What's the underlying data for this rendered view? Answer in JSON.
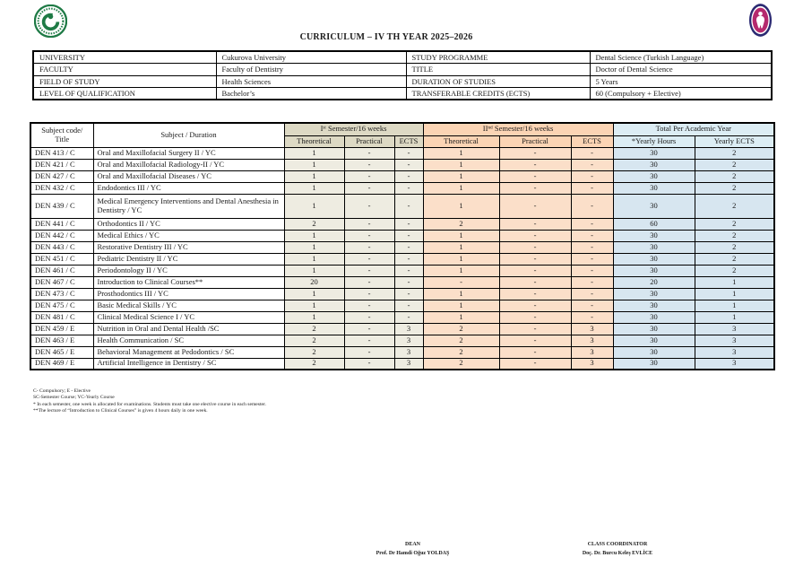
{
  "page": {
    "title": "CURRICULUM – IV TH YEAR 2025–2026"
  },
  "logos": {
    "left": "cukurova-university-seal",
    "right": "faculty-of-dentistry-seal",
    "left_color": "#1e7a45",
    "right_outer_color": "#2b2a72",
    "right_inner_color": "#b52a6e"
  },
  "info_table": {
    "rows": [
      {
        "label_left": "UNIVERSITY",
        "value_left": "Cukurova University",
        "label_right": "STUDY PROGRAMME",
        "value_right": "Dental Science (Turkish Language)"
      },
      {
        "label_left": "FACULTY",
        "value_left": "Faculty of Dentistry",
        "label_right": "TITLE",
        "value_right": "Doctor of Dental Science"
      },
      {
        "label_left": "FIELD OF STUDY",
        "value_left": "Health Sciences",
        "label_right": "DURATION OF STUDIES",
        "value_right": "5 Years"
      },
      {
        "label_left": "LEVEL OF QUALIFICATION",
        "value_left": "Bachelor’s",
        "label_right": "TRANSFERABLE CREDITS (ECTS)",
        "value_right": "60 (Compulsory + Elective)"
      }
    ]
  },
  "curriculum": {
    "headers": {
      "subject_code_line1": "Subject code/",
      "subject_code_line2": "Title",
      "subject": "Subject / Duration",
      "sem1": "Iˢᵗ Semester/16 weeks",
      "sem2": "IIⁿᵈ Semester/16 weeks",
      "total": "Total Per Academic Year",
      "theoretical": "Theoretical",
      "practical": "Practical",
      "ects": "ECTS",
      "yearly_hours": "*Yearly Hours",
      "yearly_ects": "Yearly ECTS"
    },
    "rows": [
      {
        "code": "DEN 413 / C",
        "subject": "Oral and Maxillofacial Surgery II / YC",
        "s1t": "1",
        "s1p": "-",
        "s1e": "-",
        "s2t": "1",
        "s2p": "-",
        "s2e": "-",
        "hours": "30",
        "ects": "2"
      },
      {
        "code": "DEN 421 / C",
        "subject": "Oral and Maxillofacial Radiology-II / YC",
        "s1t": "1",
        "s1p": "-",
        "s1e": "-",
        "s2t": "1",
        "s2p": "-",
        "s2e": "-",
        "hours": "30",
        "ects": "2"
      },
      {
        "code": "DEN 427 / C",
        "subject": "Oral and Maxillofacial Diseases / YC",
        "s1t": "1",
        "s1p": "-",
        "s1e": "-",
        "s2t": "1",
        "s2p": "-",
        "s2e": "-",
        "hours": "30",
        "ects": "2"
      },
      {
        "code": "DEN 432 / C",
        "subject": "Endodontics III / YC",
        "s1t": "1",
        "s1p": "-",
        "s1e": "-",
        "s2t": "1",
        "s2p": "-",
        "s2e": "-",
        "hours": "30",
        "ects": "2"
      },
      {
        "code": "DEN 439 / C",
        "subject": "Medical Emergency Interventions and Dental Anesthesia in Dentistry / YC",
        "s1t": "1",
        "s1p": "-",
        "s1e": "-",
        "s2t": "1",
        "s2p": "-",
        "s2e": "-",
        "hours": "30",
        "ects": "2"
      },
      {
        "code": "DEN 441 / C",
        "subject": "Orthodontics II / YC",
        "s1t": "2",
        "s1p": "-",
        "s1e": "-",
        "s2t": "2",
        "s2p": "-",
        "s2e": "-",
        "hours": "60",
        "ects": "2"
      },
      {
        "code": "DEN 442 / C",
        "subject": "Medical Ethics / YC",
        "s1t": "1",
        "s1p": "-",
        "s1e": "-",
        "s2t": "1",
        "s2p": "-",
        "s2e": "-",
        "hours": "30",
        "ects": "2"
      },
      {
        "code": "DEN 443 / C",
        "subject": "Restorative Dentistry III / YC",
        "s1t": "1",
        "s1p": "-",
        "s1e": "-",
        "s2t": "1",
        "s2p": "-",
        "s2e": "-",
        "hours": "30",
        "ects": "2"
      },
      {
        "code": "DEN 451 / C",
        "subject": "Pediatric Dentistry II / YC",
        "s1t": "1",
        "s1p": "-",
        "s1e": "-",
        "s2t": "1",
        "s2p": "-",
        "s2e": "-",
        "hours": "30",
        "ects": "2"
      },
      {
        "code": "DEN 461 / C",
        "subject": "Periodontology II / YC",
        "s1t": "1",
        "s1p": "-",
        "s1e": "-",
        "s2t": "1",
        "s2p": "-",
        "s2e": "-",
        "hours": "30",
        "ects": "2"
      },
      {
        "code": "DEN 467 / C",
        "subject": "Introduction to Clinical Courses**",
        "s1t": "20",
        "s1p": "-",
        "s1e": "-",
        "s2t": "-",
        "s2p": "-",
        "s2e": "-",
        "hours": "20",
        "ects": "1"
      },
      {
        "code": "DEN 473 / C",
        "subject": "Prosthodontics III / YC",
        "s1t": "1",
        "s1p": "-",
        "s1e": "-",
        "s2t": "1",
        "s2p": "-",
        "s2e": "-",
        "hours": "30",
        "ects": "1"
      },
      {
        "code": "DEN 475 / C",
        "subject": "Basic Medical Skills / YC",
        "s1t": "1",
        "s1p": "-",
        "s1e": "-",
        "s2t": "1",
        "s2p": "-",
        "s2e": "-",
        "hours": "30",
        "ects": "1"
      },
      {
        "code": "DEN 481 / C",
        "subject": "Clinical Medical Science I / YC",
        "s1t": "1",
        "s1p": "-",
        "s1e": "-",
        "s2t": "1",
        "s2p": "-",
        "s2e": "-",
        "hours": "30",
        "ects": "1"
      },
      {
        "code": "DEN 459 / E",
        "subject": "Nutrition in Oral and Dental Health /SC",
        "s1t": "2",
        "s1p": "-",
        "s1e": "3",
        "s2t": "2",
        "s2p": "-",
        "s2e": "3",
        "hours": "30",
        "ects": "3"
      },
      {
        "code": "DEN 463 / E",
        "subject": "Health Communication / SC",
        "s1t": "2",
        "s1p": "-",
        "s1e": "3",
        "s2t": "2",
        "s2p": "-",
        "s2e": "3",
        "hours": "30",
        "ects": "3"
      },
      {
        "code": "DEN 465 / E",
        "subject": "Behavioral Management at Pedodontics / SC",
        "s1t": "2",
        "s1p": "-",
        "s1e": "3",
        "s2t": "2",
        "s2p": "-",
        "s2e": "3",
        "hours": "30",
        "ects": "3"
      },
      {
        "code": "DEN 469 / E",
        "subject": "Artificial Intelligence in Dentistry / SC",
        "s1t": "2",
        "s1p": "-",
        "s1e": "3",
        "s2t": "2",
        "s2p": "-",
        "s2e": "3",
        "hours": "30",
        "ects": "3"
      }
    ]
  },
  "footnotes": [
    "C- Compulsory; E - Elective",
    "SC-Semester Course; YC-Yearly Course",
    "* In each semester, one week is allocated for examinations. Students must take one elective course in each semester.",
    "**The lecture of “Introduction to Clinical Courses” is given 4 hours daily in one week."
  ],
  "signatures": {
    "left_role": "DEAN",
    "left_name": "Prof. Dr Hamdi Oğuz YOLDAŞ",
    "right_role": "CLASS COORDINATOR",
    "right_name": "Doç. Dr. Burcu Keleş EVLİCE"
  },
  "colors": {
    "sem1_header": "#DDD9C4",
    "sem1_cell": "#EEECE1",
    "sem2_header": "#FBD4B4",
    "sem2_cell": "#FBDFC9",
    "total_header": "#DCEDF4",
    "total_cell": "#D7E6F0",
    "border": "#000000"
  }
}
